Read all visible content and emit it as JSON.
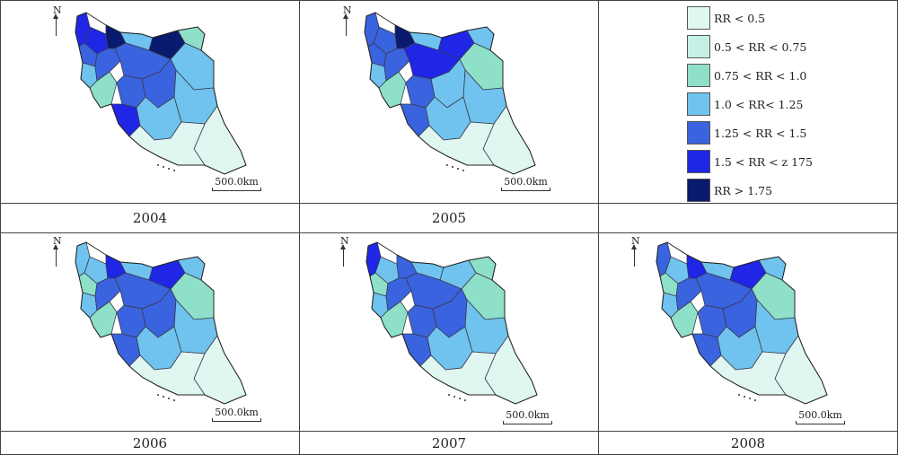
{
  "panels": [
    {
      "year": "2004",
      "north": "N",
      "scale": "500.0km"
    },
    {
      "year": "2005",
      "north": "N",
      "scale": "500.0km"
    },
    {
      "year": "",
      "north": "",
      "scale": ""
    },
    {
      "year": "2006",
      "north": "N",
      "scale": "500.0km"
    },
    {
      "year": "2007",
      "north": "N",
      "scale": "500.0km"
    },
    {
      "year": "2008",
      "north": "N",
      "scale": "500.0km"
    }
  ],
  "legend": [
    {
      "label": "RR < 0.5",
      "color": "#dff6f1"
    },
    {
      "label": "0.5 < RR < 0.75",
      "color": "#c4f0e6"
    },
    {
      "label": "0.75 < RR < 1.0",
      "color": "#8ee0c8"
    },
    {
      "label": "1.0 < RR< 1.25",
      "color": "#6fc3ee"
    },
    {
      "label": "1.25 < RR < 1.5",
      "color": "#3a63df"
    },
    {
      "label": "1.5 < RR < z 175",
      "color": "#1f26e6"
    },
    {
      "label": "RR > 1.75",
      "color": "#0a1a6e"
    }
  ]
}
